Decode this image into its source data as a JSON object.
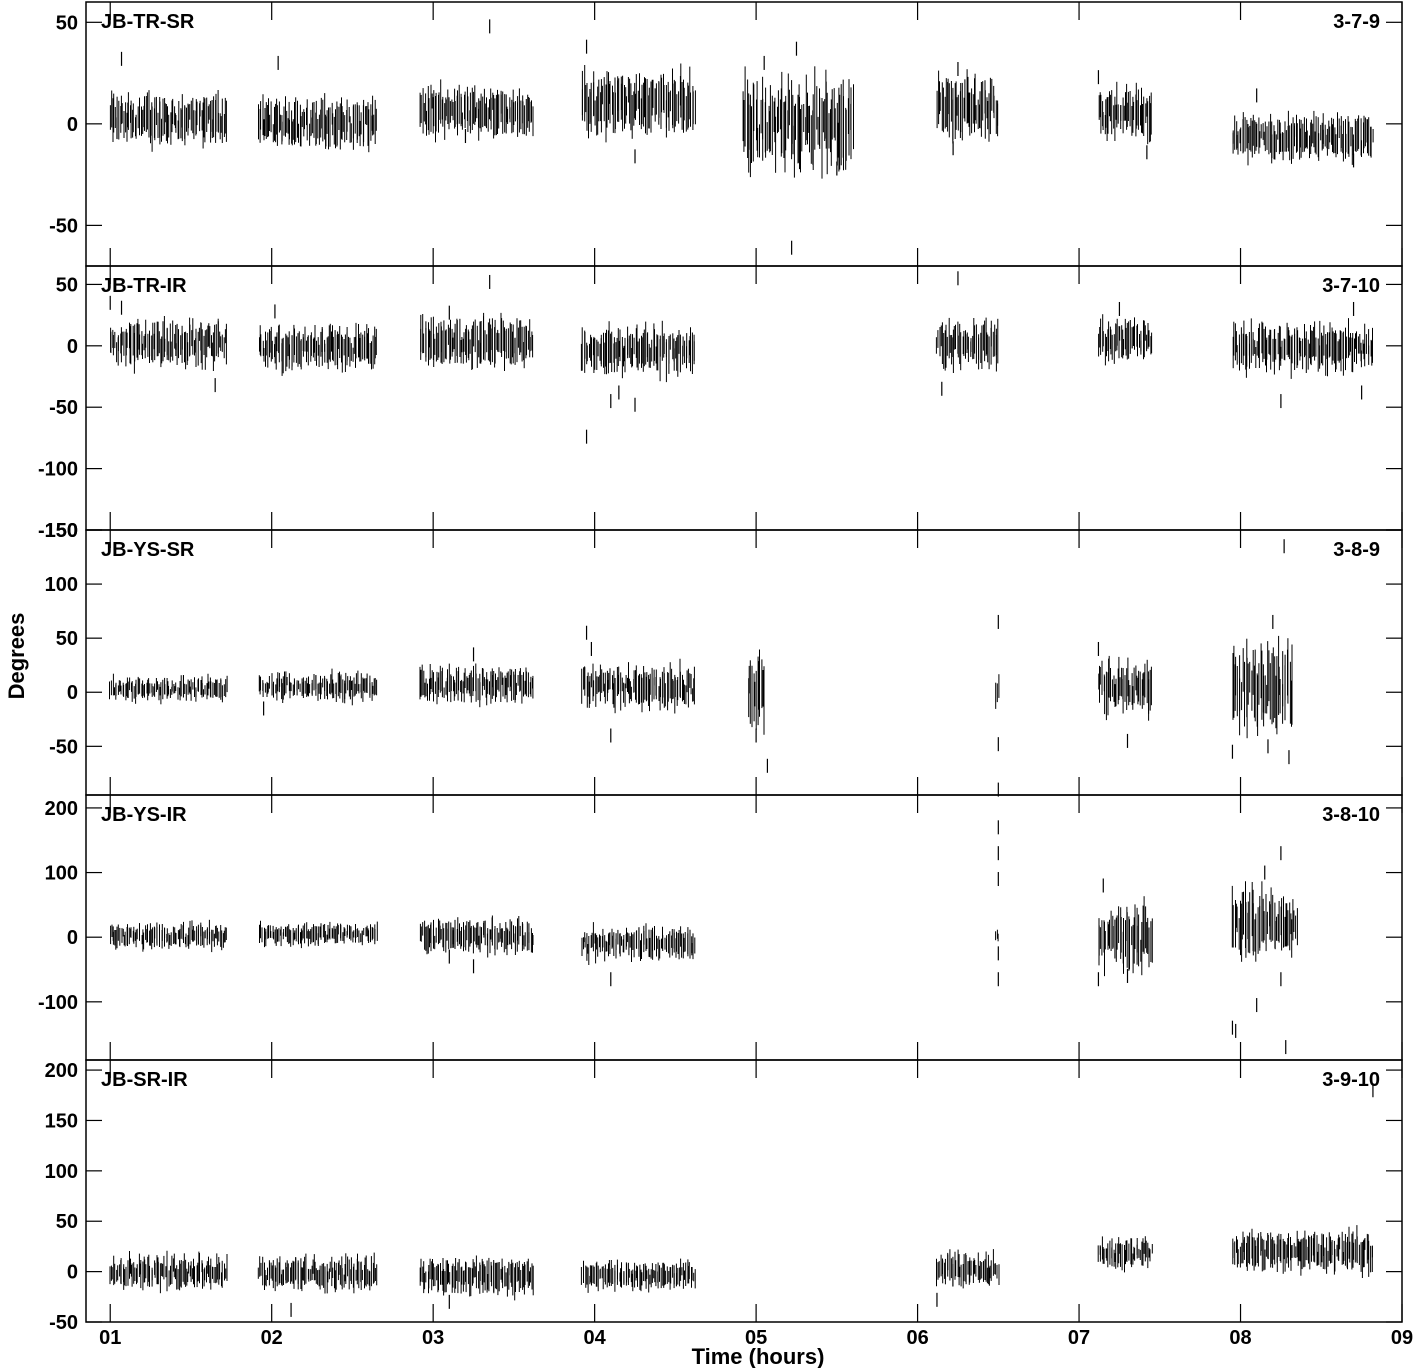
{
  "chart_data": {
    "type": "scatter",
    "xlabel": "Time (hours)",
    "ylabel": "Degrees",
    "xlim": [
      0.85,
      9.0
    ],
    "x_ticks": [
      "01",
      "02",
      "03",
      "04",
      "05",
      "06",
      "07",
      "08",
      "09"
    ],
    "panels": [
      {
        "label": "JB-TR-SR",
        "id": "3-7-9",
        "ylim": [
          -70,
          60
        ],
        "y_ticks": [
          50,
          0,
          -50
        ],
        "segments": [
          {
            "start": 1.0,
            "end": 1.72,
            "center": 2,
            "spread": 9,
            "outliers": [
              [
                1.07,
                32
              ]
            ]
          },
          {
            "start": 1.92,
            "end": 2.65,
            "center": 0,
            "spread": 9,
            "outliers": [
              [
                2.04,
                30
              ]
            ]
          },
          {
            "start": 2.92,
            "end": 3.62,
            "center": 6,
            "spread": 9,
            "outliers": [
              [
                3.35,
                48
              ],
              [
                3.2,
                -6
              ]
            ]
          },
          {
            "start": 3.92,
            "end": 4.62,
            "center": 10,
            "spread": 11,
            "outliers": [
              [
                3.95,
                38
              ],
              [
                4.25,
                -16
              ]
            ]
          },
          {
            "start": 4.92,
            "end": 5.6,
            "center": 0,
            "spread": 16,
            "outliers": [
              [
                5.25,
                37
              ],
              [
                5.05,
                30
              ],
              [
                5.5,
                -22
              ],
              [
                5.22,
                -61
              ]
            ]
          },
          {
            "start": 6.12,
            "end": 6.5,
            "center": 8,
            "spread": 11,
            "outliers": [
              [
                6.25,
                27
              ],
              [
                6.22,
                -12
              ]
            ]
          },
          {
            "start": 7.12,
            "end": 7.45,
            "center": 5,
            "spread": 9,
            "outliers": [
              [
                7.12,
                23
              ],
              [
                7.42,
                -14
              ]
            ]
          },
          {
            "start": 7.95,
            "end": 8.82,
            "center": -7,
            "spread": 8,
            "outliers": [
              [
                8.1,
                14
              ],
              [
                8.7,
                -18
              ]
            ]
          }
        ]
      },
      {
        "label": "JB-TR-IR",
        "id": "3-7-10",
        "ylim": [
          -150,
          65
        ],
        "y_ticks": [
          50,
          0,
          -50,
          -100,
          -150
        ],
        "segments": [
          {
            "start": 1.0,
            "end": 1.72,
            "center": 2,
            "spread": 13,
            "outliers": [
              [
                1.0,
                35
              ],
              [
                1.07,
                31
              ],
              [
                1.65,
                -32
              ]
            ]
          },
          {
            "start": 1.92,
            "end": 2.65,
            "center": -2,
            "spread": 12,
            "outliers": [
              [
                2.02,
                28
              ]
            ]
          },
          {
            "start": 2.92,
            "end": 3.62,
            "center": 2,
            "spread": 14,
            "outliers": [
              [
                3.35,
                52
              ],
              [
                3.1,
                27
              ]
            ]
          },
          {
            "start": 3.92,
            "end": 4.62,
            "center": -4,
            "spread": 14,
            "outliers": [
              [
                3.95,
                -74
              ],
              [
                4.1,
                -45
              ],
              [
                4.25,
                -48
              ],
              [
                4.15,
                -38
              ]
            ]
          },
          {
            "start": 6.12,
            "end": 6.5,
            "center": 2,
            "spread": 14,
            "outliers": [
              [
                6.25,
                55
              ],
              [
                6.15,
                -35
              ]
            ]
          },
          {
            "start": 7.12,
            "end": 7.45,
            "center": 5,
            "spread": 13,
            "outliers": [
              [
                7.25,
                30
              ]
            ]
          },
          {
            "start": 7.95,
            "end": 8.82,
            "center": -2,
            "spread": 14,
            "outliers": [
              [
                8.7,
                30
              ],
              [
                8.25,
                -45
              ],
              [
                8.75,
                -38
              ]
            ]
          }
        ]
      },
      {
        "label": "JB-YS-SR",
        "id": "3-8-9",
        "ylim": [
          -95,
          150
        ],
        "y_ticks": [
          150,
          100,
          50,
          0,
          -50
        ],
        "segments": [
          {
            "start": 1.0,
            "end": 1.72,
            "center": 3,
            "spread": 8,
            "outliers": []
          },
          {
            "start": 1.92,
            "end": 2.65,
            "center": 5,
            "spread": 9,
            "outliers": [
              [
                1.95,
                -15
              ]
            ]
          },
          {
            "start": 2.92,
            "end": 3.62,
            "center": 7,
            "spread": 12,
            "outliers": [
              [
                3.25,
                35
              ]
            ]
          },
          {
            "start": 3.92,
            "end": 4.62,
            "center": 5,
            "spread": 14,
            "outliers": [
              [
                3.95,
                55
              ],
              [
                3.98,
                40
              ],
              [
                4.1,
                -40
              ]
            ]
          },
          {
            "start": 4.95,
            "end": 5.05,
            "center": 0,
            "spread": 25,
            "outliers": [
              [
                5.0,
                -40
              ],
              [
                5.07,
                -68
              ]
            ]
          },
          {
            "start": 6.48,
            "end": 6.5,
            "center": 0,
            "spread": 10,
            "outliers": [
              [
                6.5,
                65
              ],
              [
                6.5,
                -48
              ],
              [
                6.5,
                -90
              ]
            ]
          },
          {
            "start": 7.12,
            "end": 7.45,
            "center": 5,
            "spread": 18,
            "outliers": [
              [
                7.3,
                -45
              ],
              [
                7.12,
                40
              ]
            ]
          },
          {
            "start": 7.95,
            "end": 8.32,
            "center": 5,
            "spread": 30,
            "outliers": [
              [
                8.27,
                135
              ],
              [
                8.2,
                65
              ],
              [
                8.17,
                -50
              ],
              [
                8.3,
                -60
              ],
              [
                7.95,
                -55
              ]
            ]
          }
        ]
      },
      {
        "label": "JB-YS-IR",
        "id": "3-8-10",
        "ylim": [
          -190,
          220
        ],
        "y_ticks": [
          200,
          100,
          0,
          -100
        ],
        "segments": [
          {
            "start": 1.0,
            "end": 1.72,
            "center": 2,
            "spread": 14,
            "outliers": []
          },
          {
            "start": 1.92,
            "end": 2.65,
            "center": 5,
            "spread": 12,
            "outliers": []
          },
          {
            "start": 2.92,
            "end": 3.62,
            "center": 2,
            "spread": 18,
            "outliers": [
              [
                3.1,
                -30
              ],
              [
                3.25,
                -45
              ]
            ]
          },
          {
            "start": 3.92,
            "end": 4.62,
            "center": -10,
            "spread": 18,
            "outliers": [
              [
                4.1,
                -65
              ]
            ]
          },
          {
            "start": 6.48,
            "end": 6.5,
            "center": 0,
            "spread": 10,
            "outliers": [
              [
                6.5,
                170
              ],
              [
                6.5,
                130
              ],
              [
                6.5,
                90
              ],
              [
                6.5,
                -25
              ],
              [
                6.5,
                -65
              ]
            ]
          },
          {
            "start": 7.12,
            "end": 7.45,
            "center": 0,
            "spread": 35,
            "outliers": [
              [
                7.15,
                80
              ],
              [
                7.12,
                -65
              ],
              [
                7.3,
                -60
              ]
            ]
          },
          {
            "start": 7.95,
            "end": 8.35,
            "center": 20,
            "spread": 40,
            "outliers": [
              [
                7.95,
                -140
              ],
              [
                7.97,
                -145
              ],
              [
                8.1,
                -105
              ],
              [
                8.28,
                -170
              ],
              [
                8.25,
                -65
              ],
              [
                8.25,
                130
              ],
              [
                8.15,
                100
              ]
            ]
          }
        ]
      },
      {
        "label": "JB-SR-IR",
        "id": "3-9-10",
        "ylim": [
          -50,
          210
        ],
        "y_ticks": [
          200,
          150,
          100,
          50,
          0,
          -50
        ],
        "segments": [
          {
            "start": 1.0,
            "end": 1.72,
            "center": 0,
            "spread": 12,
            "outliers": []
          },
          {
            "start": 1.92,
            "end": 2.65,
            "center": -2,
            "spread": 12,
            "outliers": [
              [
                2.12,
                -38
              ]
            ]
          },
          {
            "start": 2.92,
            "end": 3.62,
            "center": -4,
            "spread": 13,
            "outliers": [
              [
                3.1,
                -30
              ]
            ]
          },
          {
            "start": 3.92,
            "end": 4.62,
            "center": -4,
            "spread": 10,
            "outliers": []
          },
          {
            "start": 6.12,
            "end": 6.5,
            "center": 2,
            "spread": 12,
            "outliers": [
              [
                6.12,
                -28
              ]
            ]
          },
          {
            "start": 7.12,
            "end": 7.45,
            "center": 18,
            "spread": 11,
            "outliers": []
          },
          {
            "start": 7.95,
            "end": 8.82,
            "center": 20,
            "spread": 14,
            "outliers": [
              [
                8.82,
                180
              ]
            ]
          }
        ]
      }
    ]
  }
}
